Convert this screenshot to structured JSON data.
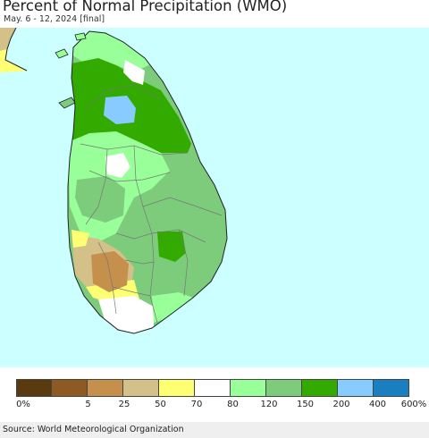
{
  "header": {
    "title": "Percent of Normal Precipitation (WMO)",
    "subtitle": "May. 6 - 12, 2024 [final]"
  },
  "colors": {
    "sea": "#ccffff",
    "outline": "#222222",
    "district_line": "#777777"
  },
  "legend": {
    "swatches": [
      {
        "color": "#5a3b10"
      },
      {
        "color": "#8c5a22"
      },
      {
        "color": "#c4904c"
      },
      {
        "color": "#d3c189"
      },
      {
        "color": "#ffff73"
      },
      {
        "color": "#ffffff"
      },
      {
        "color": "#99ff99"
      },
      {
        "color": "#7ccc7c"
      },
      {
        "color": "#33aa00"
      },
      {
        "color": "#88ccff"
      },
      {
        "color": "#1a7fc0"
      }
    ],
    "ticks": [
      "0%",
      "5",
      "25",
      "50",
      "70",
      "80",
      "120",
      "150",
      "200",
      "400",
      "600%"
    ]
  },
  "footer": {
    "source": "Source: World Meteorological Organization"
  }
}
